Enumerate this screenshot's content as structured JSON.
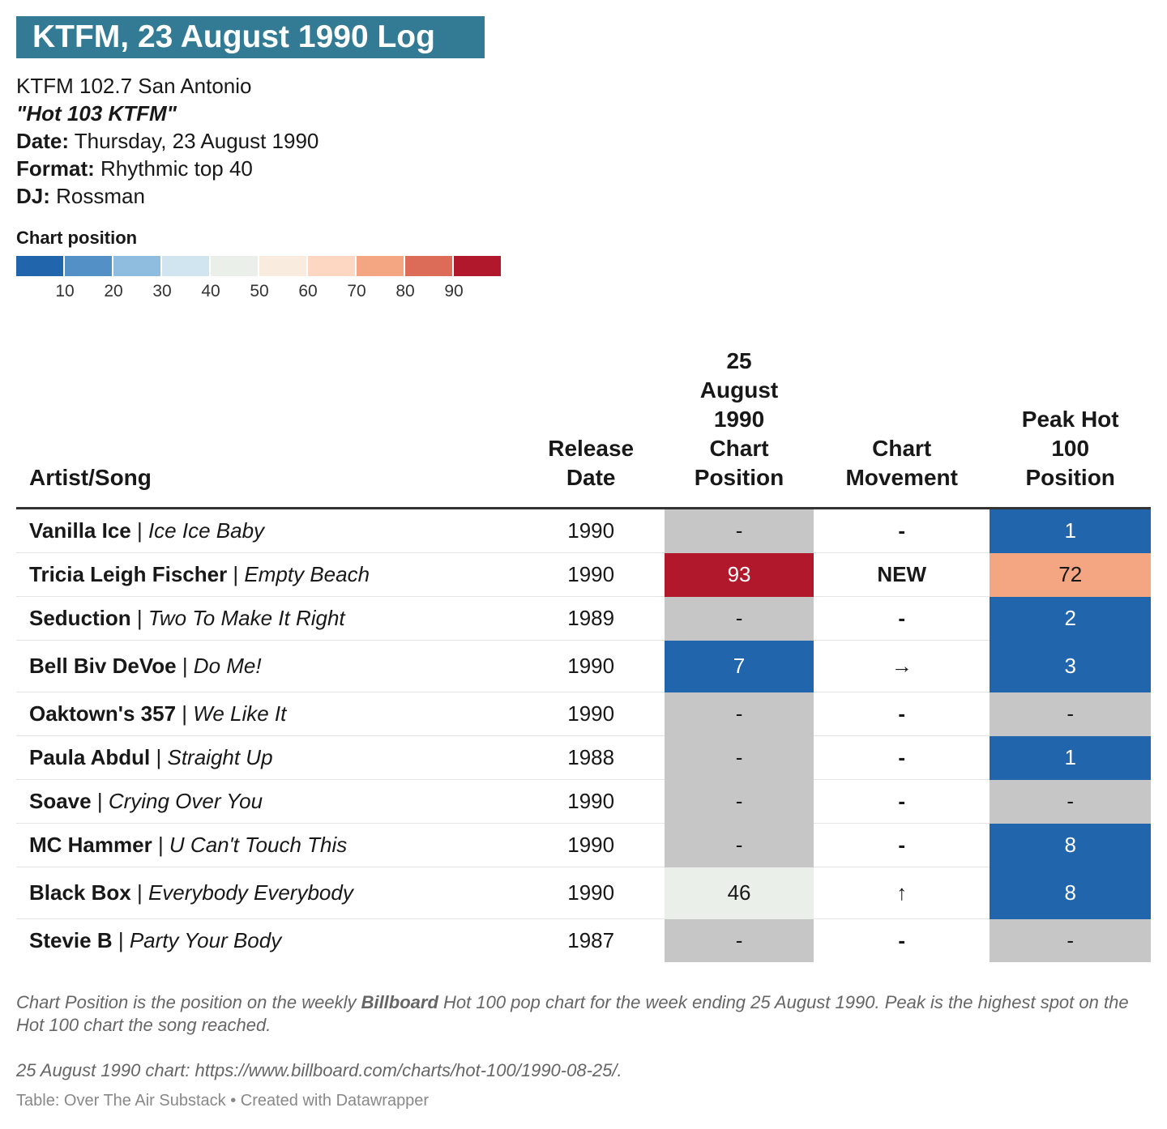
{
  "header": {
    "title": "KTFM, 23 August 1990 Log",
    "station": "KTFM 102.7 San Antonio",
    "slogan": "\"Hot 103 KTFM\"",
    "fields": [
      {
        "label": "Date:",
        "text": "Thursday, 23 August 1990"
      },
      {
        "label": "Format:",
        "text": "Rhythmic top 40"
      },
      {
        "label": "DJ:",
        "text": "Rossman"
      }
    ]
  },
  "legend": {
    "title": "Chart position",
    "range": [
      0,
      100
    ],
    "colors": [
      "#2166ac",
      "#5290c6",
      "#8fbddf",
      "#d1e5f0",
      "#ebefe9",
      "#f9ebde",
      "#fdd7c2",
      "#f4a582",
      "#dc6c58",
      "#b2182b"
    ],
    "missing_color": "#c6c6c6",
    "ticks": [
      10,
      20,
      30,
      40,
      50,
      60,
      70,
      80,
      90
    ]
  },
  "table": {
    "columns": [
      "Artist/Song",
      "Release Date",
      "25 August 1990 Chart Position",
      "Chart Movement",
      "Peak Hot 100 Position"
    ],
    "rows": [
      [
        {
          "artist": "Vanilla Ice",
          "song": "Ice Ice Baby"
        },
        1990,
        "-",
        "-",
        1
      ],
      [
        {
          "artist": "Tricia Leigh Fischer",
          "song": "Empty Beach"
        },
        1990,
        93,
        "NEW",
        72
      ],
      [
        {
          "artist": "Seduction",
          "song": "Two To Make It Right"
        },
        1989,
        "-",
        "-",
        2
      ],
      [
        {
          "artist": "Bell Biv DeVoe",
          "song": "Do Me!"
        },
        1990,
        7,
        "→",
        3
      ],
      [
        {
          "artist": "Oaktown's 357",
          "song": "We Like It"
        },
        1990,
        "-",
        "-",
        "-"
      ],
      [
        {
          "artist": "Paula Abdul",
          "song": "Straight Up"
        },
        1988,
        "-",
        "-",
        1
      ],
      [
        {
          "artist": "Soave",
          "song": "Crying Over You"
        },
        1990,
        "-",
        "-",
        "-"
      ],
      [
        {
          "artist": "MC Hammer",
          "song": "U Can't Touch This"
        },
        1990,
        "-",
        "-",
        8
      ],
      [
        {
          "artist": "Black Box",
          "song": "Everybody Everybody"
        },
        1990,
        46,
        "↑",
        8
      ],
      [
        {
          "artist": "Stevie B",
          "song": "Party Your Body"
        },
        1987,
        "-",
        "-",
        "-"
      ]
    ]
  },
  "footer": {
    "note": [
      "Chart Position is the position on the weekly ",
      "Billboard",
      " Hot 100 pop chart for the week ending 25 August 1990. Peak is the highest spot on the Hot 100 chart the song reached."
    ],
    "source_note": "25 August 1990 chart: https://www.billboard.com/charts/hot-100/1990-08-25/.",
    "credit": "Table: Over The Air Substack • Created with Datawrapper"
  }
}
